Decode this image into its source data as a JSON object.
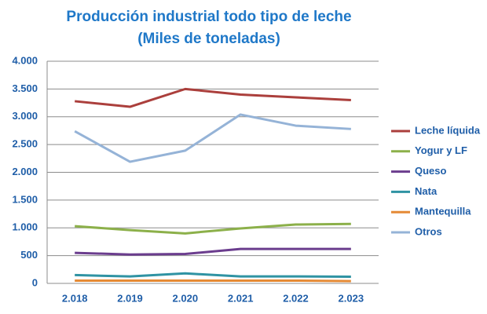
{
  "chart_data": {
    "type": "line",
    "title": [
      "Producción industrial  todo tipo de leche",
      "(Miles de toneladas)"
    ],
    "categories": [
      "2.018",
      "2.019",
      "2.020",
      "2.021",
      "2.022",
      "2.023"
    ],
    "series": [
      {
        "name": "Leche líquida",
        "color": "#ab3f3c",
        "values": [
          3280,
          3180,
          3500,
          3400,
          3350,
          3300
        ]
      },
      {
        "name": "Yogur y LF",
        "color": "#8cb04a",
        "values": [
          1030,
          960,
          900,
          990,
          1060,
          1070
        ]
      },
      {
        "name": "Queso",
        "color": "#6b3d8e",
        "values": [
          550,
          520,
          530,
          620,
          620,
          620
        ]
      },
      {
        "name": "Nata",
        "color": "#2f93a3",
        "values": [
          150,
          125,
          180,
          125,
          125,
          120
        ]
      },
      {
        "name": "Mantequilla",
        "color": "#e58a35",
        "values": [
          50,
          50,
          50,
          50,
          50,
          40
        ]
      },
      {
        "name": "Otros",
        "color": "#95b3d7",
        "values": [
          2740,
          2190,
          2390,
          3040,
          2840,
          2780
        ]
      }
    ],
    "ylim": [
      0,
      4000
    ],
    "yticks": [
      0,
      500,
      {
        "value": 1000,
        "label": "1.000"
      },
      {
        "value": 1500,
        "label": "1.500"
      },
      {
        "value": 2000,
        "label": "2.000"
      },
      {
        "value": 2500,
        "label": "2.500"
      },
      {
        "value": 3000,
        "label": "3.000"
      },
      {
        "value": 3500,
        "label": "3.500"
      },
      {
        "value": 4000,
        "label": "4.000"
      }
    ],
    "grid": true,
    "legend": "right"
  }
}
